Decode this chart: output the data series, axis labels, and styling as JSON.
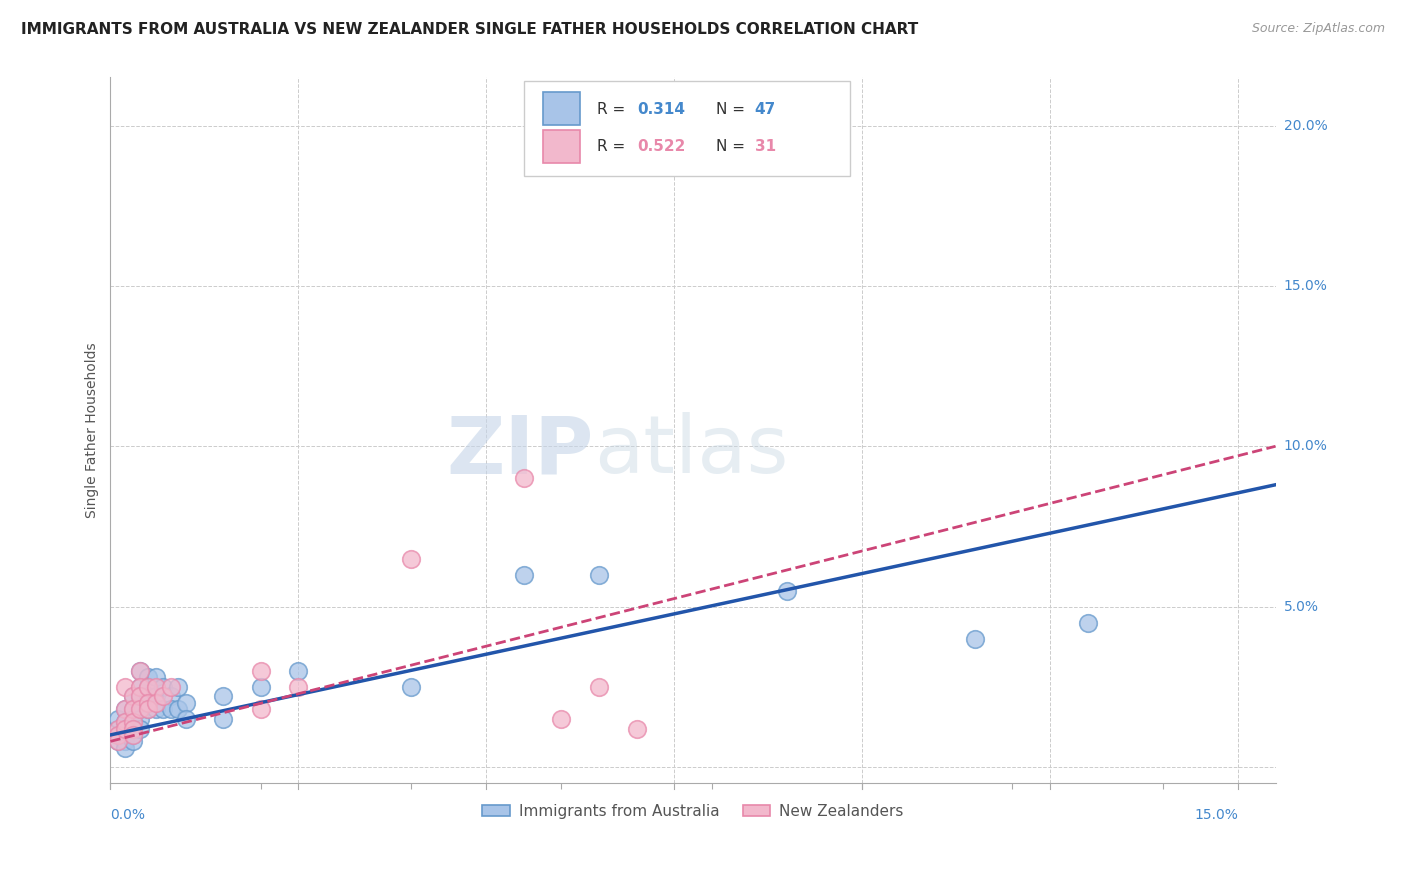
{
  "title": "IMMIGRANTS FROM AUSTRALIA VS NEW ZEALANDER SINGLE FATHER HOUSEHOLDS CORRELATION CHART",
  "source": "Source: ZipAtlas.com",
  "ylabel": "Single Father Households",
  "yticks": [
    0.0,
    0.05,
    0.1,
    0.15,
    0.2
  ],
  "ytick_labels": [
    "",
    "5.0%",
    "10.0%",
    "15.0%",
    "20.0%"
  ],
  "xlim": [
    0.0,
    0.155
  ],
  "ylim": [
    -0.005,
    0.215
  ],
  "legend_r1": "R = 0.314",
  "legend_n1": "N = 47",
  "legend_r2": "R = 0.522",
  "legend_n2": "N = 31",
  "color_blue": "#a8c4e8",
  "color_pink": "#f2b8cc",
  "color_blue_dark": "#6699cc",
  "color_pink_dark": "#e888aa",
  "line_blue": "#2255aa",
  "line_pink": "#cc4477",
  "watermark_zip": "ZIP",
  "watermark_atlas": "atlas",
  "blue_points": [
    [
      0.001,
      0.012
    ],
    [
      0.001,
      0.01
    ],
    [
      0.001,
      0.008
    ],
    [
      0.001,
      0.015
    ],
    [
      0.002,
      0.018
    ],
    [
      0.002,
      0.014
    ],
    [
      0.002,
      0.012
    ],
    [
      0.002,
      0.01
    ],
    [
      0.002,
      0.008
    ],
    [
      0.002,
      0.006
    ],
    [
      0.003,
      0.022
    ],
    [
      0.003,
      0.018
    ],
    [
      0.003,
      0.015
    ],
    [
      0.003,
      0.012
    ],
    [
      0.003,
      0.01
    ],
    [
      0.003,
      0.008
    ],
    [
      0.004,
      0.03
    ],
    [
      0.004,
      0.025
    ],
    [
      0.004,
      0.022
    ],
    [
      0.004,
      0.018
    ],
    [
      0.004,
      0.015
    ],
    [
      0.004,
      0.012
    ],
    [
      0.005,
      0.028
    ],
    [
      0.005,
      0.025
    ],
    [
      0.005,
      0.022
    ],
    [
      0.005,
      0.018
    ],
    [
      0.006,
      0.028
    ],
    [
      0.006,
      0.022
    ],
    [
      0.006,
      0.018
    ],
    [
      0.007,
      0.025
    ],
    [
      0.007,
      0.018
    ],
    [
      0.008,
      0.022
    ],
    [
      0.008,
      0.018
    ],
    [
      0.009,
      0.025
    ],
    [
      0.009,
      0.018
    ],
    [
      0.01,
      0.02
    ],
    [
      0.01,
      0.015
    ],
    [
      0.015,
      0.022
    ],
    [
      0.015,
      0.015
    ],
    [
      0.02,
      0.025
    ],
    [
      0.025,
      0.03
    ],
    [
      0.04,
      0.025
    ],
    [
      0.055,
      0.06
    ],
    [
      0.065,
      0.06
    ],
    [
      0.09,
      0.055
    ],
    [
      0.115,
      0.04
    ],
    [
      0.13,
      0.045
    ]
  ],
  "pink_points": [
    [
      0.001,
      0.012
    ],
    [
      0.001,
      0.01
    ],
    [
      0.001,
      0.008
    ],
    [
      0.002,
      0.025
    ],
    [
      0.002,
      0.018
    ],
    [
      0.002,
      0.014
    ],
    [
      0.002,
      0.012
    ],
    [
      0.003,
      0.022
    ],
    [
      0.003,
      0.018
    ],
    [
      0.003,
      0.014
    ],
    [
      0.003,
      0.012
    ],
    [
      0.003,
      0.01
    ],
    [
      0.004,
      0.03
    ],
    [
      0.004,
      0.025
    ],
    [
      0.004,
      0.022
    ],
    [
      0.004,
      0.018
    ],
    [
      0.005,
      0.025
    ],
    [
      0.005,
      0.02
    ],
    [
      0.005,
      0.018
    ],
    [
      0.006,
      0.025
    ],
    [
      0.006,
      0.02
    ],
    [
      0.007,
      0.022
    ],
    [
      0.008,
      0.025
    ],
    [
      0.02,
      0.03
    ],
    [
      0.02,
      0.018
    ],
    [
      0.025,
      0.025
    ],
    [
      0.04,
      0.065
    ],
    [
      0.055,
      0.09
    ],
    [
      0.06,
      0.015
    ],
    [
      0.065,
      0.025
    ],
    [
      0.07,
      0.012
    ]
  ],
  "blue_line": [
    [
      0.0,
      0.01
    ],
    [
      0.155,
      0.088
    ]
  ],
  "pink_line": [
    [
      0.0,
      0.008
    ],
    [
      0.155,
      0.1
    ]
  ]
}
